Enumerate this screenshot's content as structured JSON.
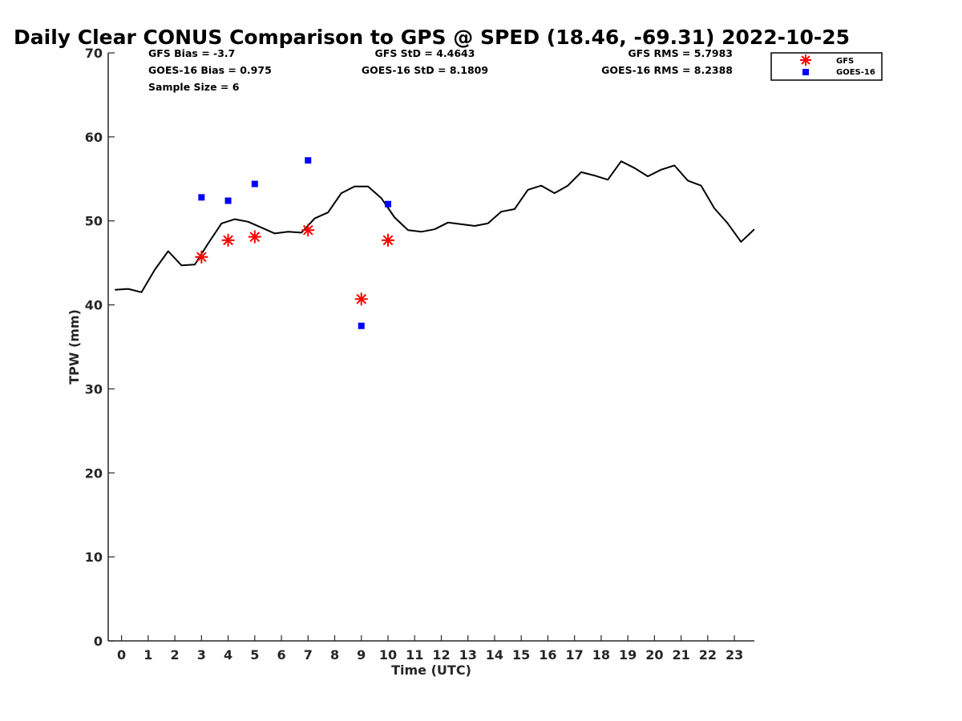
{
  "chart_data": {
    "type": "line",
    "title": "Daily Clear CONUS Comparison to GPS @ SPED (18.46, -69.31) 2022-10-25",
    "xlabel": "Time (UTC)",
    "ylabel": "TPW (mm)",
    "xlim": [
      -0.5,
      23.75
    ],
    "ylim": [
      0,
      70
    ],
    "xticks": [
      0,
      1,
      2,
      3,
      4,
      5,
      6,
      7,
      8,
      9,
      10,
      11,
      12,
      13,
      14,
      15,
      16,
      17,
      18,
      19,
      20,
      21,
      22,
      23
    ],
    "yticks": [
      0,
      10,
      20,
      30,
      40,
      50,
      60,
      70
    ],
    "grid": false,
    "legend_position": "top-right",
    "stats": {
      "gfs_bias": "GFS Bias = -3.7",
      "goes_bias": "GOES-16 Bias = 0.975",
      "sample_size": "Sample Size = 6",
      "gfs_std": "GFS StD = 4.4643",
      "goes_std": "GOES-16 StD = 8.1809",
      "gfs_rms": "GFS RMS = 5.7983",
      "goes_rms": "GOES-16 RMS = 8.2388"
    },
    "gps_line": {
      "color": "#000000",
      "x": [
        -0.25,
        0.25,
        0.75,
        1.25,
        1.75,
        2.25,
        2.75,
        3.25,
        3.75,
        4.25,
        4.75,
        5.25,
        5.75,
        6.25,
        6.75,
        7.25,
        7.75,
        8.25,
        8.75,
        9.25,
        9.75,
        10.25,
        10.75,
        11.25,
        11.75,
        12.25,
        12.75,
        13.25,
        13.75,
        14.25,
        14.75,
        15.25,
        15.75,
        16.25,
        16.75,
        17.25,
        17.75,
        18.25,
        18.75,
        19.25,
        19.75,
        20.25,
        20.75,
        21.25,
        21.75,
        22.25,
        22.75,
        23.25,
        23.75
      ],
      "y": [
        41.8,
        41.9,
        41.5,
        44.2,
        46.4,
        44.7,
        44.8,
        47.3,
        49.7,
        50.2,
        49.9,
        49.2,
        48.5,
        48.7,
        48.6,
        50.3,
        51.0,
        53.3,
        54.1,
        54.1,
        52.7,
        50.4,
        48.9,
        48.7,
        49.0,
        49.8,
        49.6,
        49.4,
        49.7,
        51.1,
        51.4,
        53.7,
        54.2,
        53.3,
        54.2,
        55.8,
        55.4,
        54.9,
        57.1,
        56.3,
        55.3,
        56.1,
        56.6,
        54.8,
        54.2,
        51.5,
        49.7,
        47.5,
        49.0
      ]
    },
    "series": [
      {
        "name": "GFS",
        "marker": "asterisk",
        "color": "#ff0000",
        "x": [
          3,
          4,
          5,
          7,
          9,
          10
        ],
        "y": [
          45.7,
          47.7,
          48.1,
          48.9,
          40.7,
          47.7
        ]
      },
      {
        "name": "GOES-16",
        "marker": "square",
        "color": "#0000ff",
        "x": [
          3,
          4,
          5,
          7,
          9,
          10
        ],
        "y": [
          52.8,
          52.4,
          54.4,
          57.2,
          37.5,
          52.0
        ]
      }
    ]
  }
}
